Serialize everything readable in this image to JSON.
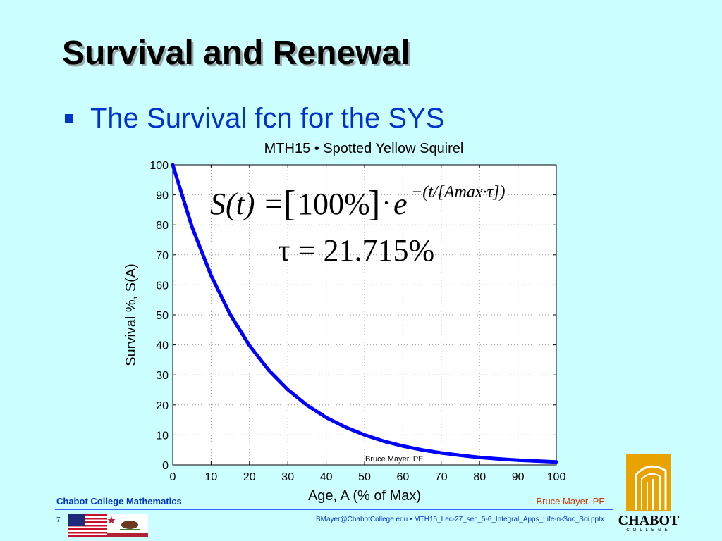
{
  "slide": {
    "title": "Survival and Renewal",
    "bullet": "The Survival fcn for the SYS"
  },
  "footer": {
    "left": "Chabot College Mathematics",
    "right": "Bruce Mayer, PE",
    "slide_number": "7",
    "file": "BMayer@ChabotCollege.edu  •  MTH15_Lec-27_sec_5-6_Integral_Apps_Life-n-Soc_Sci.pptx"
  },
  "logo": {
    "name": "CHABOT",
    "sub": "COLLEGE"
  },
  "colors": {
    "background": "#ccffff",
    "accent": "#0033cc",
    "curve": "#0000ff",
    "footer_right": "#cc3300"
  },
  "icons": [
    "bullet-square-icon",
    "us-flag-icon",
    "california-flag-icon",
    "chabot-logo-icon"
  ],
  "chart_data": {
    "type": "line",
    "title": "MTH15 • Spotted Yellow Squirel",
    "xlabel": "Age, A (% of Max)",
    "ylabel": "Survival %, S(A)",
    "xlim": [
      0,
      100
    ],
    "ylim": [
      0,
      100
    ],
    "xticks": [
      0,
      10,
      20,
      30,
      40,
      50,
      60,
      70,
      80,
      90,
      100
    ],
    "yticks": [
      0,
      10,
      20,
      30,
      40,
      50,
      60,
      70,
      80,
      90,
      100
    ],
    "grid": true,
    "series": [
      {
        "x": [
          0,
          5,
          10,
          15,
          20,
          25,
          30,
          35,
          40,
          45,
          50,
          55,
          60,
          65,
          70,
          75,
          80,
          85,
          90,
          95,
          100
        ],
        "values": [
          100,
          79.4,
          63.1,
          50.1,
          39.8,
          31.6,
          25.1,
          19.9,
          15.8,
          12.6,
          10.0,
          7.9,
          6.3,
          5.0,
          4.0,
          3.2,
          2.5,
          2.0,
          1.6,
          1.3,
          1.0
        ],
        "color": "#0000ff"
      }
    ],
    "formula": {
      "lhs": "S(t) =",
      "bracket": "100%",
      "exp_base": "e",
      "exponent": "−(t/[Amax·τ])"
    },
    "tau_label": "τ = 21.715%",
    "watermark": "Bruce Mayer, PE"
  }
}
